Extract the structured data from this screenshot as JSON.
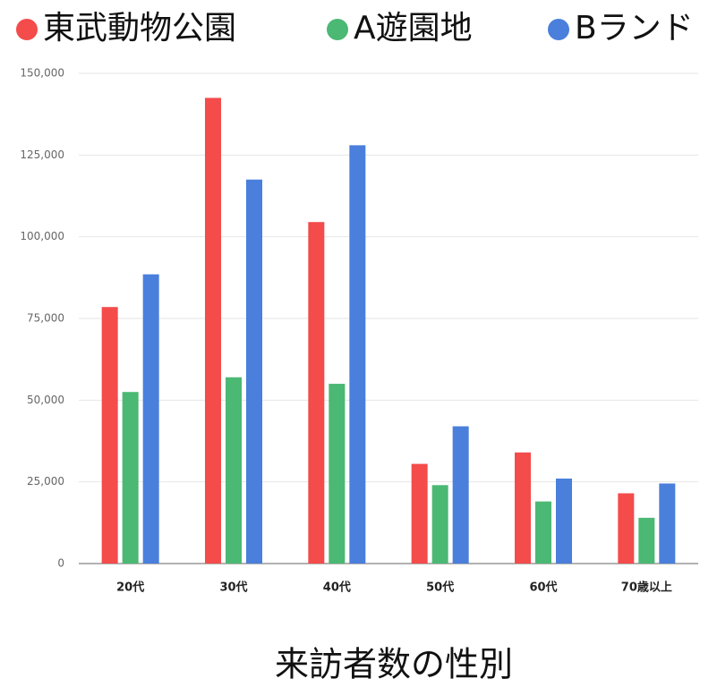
{
  "chart_data": {
    "type": "bar",
    "title": "来訪者数の性別",
    "categories": [
      "20代",
      "30代",
      "40代",
      "50代",
      "60代",
      "70歳以上"
    ],
    "series": [
      {
        "name": "東武動物公園",
        "color": "#f44b4b",
        "values": [
          78500,
          142500,
          104500,
          30500,
          34000,
          21500
        ]
      },
      {
        "name": "A遊園地",
        "color": "#4bb874",
        "values": [
          52500,
          57000,
          55000,
          24000,
          19000,
          14000
        ]
      },
      {
        "name": "Bランド",
        "color": "#4a7fdc",
        "values": [
          88500,
          117500,
          128000,
          42000,
          26000,
          24500
        ]
      }
    ],
    "ylim": [
      0,
      150000
    ],
    "yticks": [
      0,
      {
        "value": 25000,
        "label": "25,000"
      },
      {
        "value": 50000,
        "label": "50,000"
      },
      {
        "value": 75000,
        "label": "75,000"
      },
      {
        "value": 100000,
        "label": "100,000"
      },
      {
        "value": 125000,
        "label": "125,000"
      },
      {
        "value": 150000,
        "label": "150,000"
      }
    ],
    "grid": true,
    "legend": "top"
  }
}
